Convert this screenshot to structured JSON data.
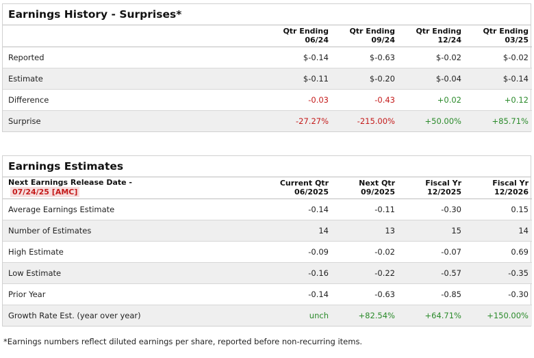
{
  "history": {
    "title": "Earnings History - Surprises*",
    "columns": [
      [
        "Qtr Ending",
        "06/24"
      ],
      [
        "Qtr Ending",
        "09/24"
      ],
      [
        "Qtr Ending",
        "12/24"
      ],
      [
        "Qtr Ending",
        "03/25"
      ]
    ],
    "rows": [
      {
        "label": "Reported",
        "values": [
          "$-0.14",
          "$-0.63",
          "$-0.02",
          "$-0.02"
        ]
      },
      {
        "label": "Estimate",
        "values": [
          "$-0.11",
          "$-0.20",
          "$-0.04",
          "$-0.14"
        ]
      },
      {
        "label": "Difference",
        "values": [
          "-0.03",
          "-0.43",
          "+0.02",
          "+0.12"
        ]
      },
      {
        "label": "Surprise",
        "values": [
          "-27.27%",
          "-215.00%",
          "+50.00%",
          "+85.71%"
        ]
      }
    ]
  },
  "estimates": {
    "title": "Earnings Estimates",
    "release_label": "Next Earnings Release Date -",
    "release_date": "07/24/25 [AMC]",
    "columns": [
      [
        "Current Qtr",
        "06/2025"
      ],
      [
        "Next Qtr",
        "09/2025"
      ],
      [
        "Fiscal Yr",
        "12/2025"
      ],
      [
        "Fiscal Yr",
        "12/2026"
      ]
    ],
    "rows": [
      {
        "label": "Average Earnings Estimate",
        "values": [
          "-0.14",
          "-0.11",
          "-0.30",
          "0.15"
        ]
      },
      {
        "label": "Number of Estimates",
        "values": [
          "14",
          "13",
          "15",
          "14"
        ]
      },
      {
        "label": "High Estimate",
        "values": [
          "-0.09",
          "-0.02",
          "-0.07",
          "0.69"
        ]
      },
      {
        "label": "Low Estimate",
        "values": [
          "-0.16",
          "-0.22",
          "-0.57",
          "-0.35"
        ]
      },
      {
        "label": "Prior Year",
        "values": [
          "-0.14",
          "-0.63",
          "-0.85",
          "-0.30"
        ]
      },
      {
        "label": "Growth Rate Est. (year over year)",
        "values": [
          "unch",
          "+82.54%",
          "+64.71%",
          "+150.00%"
        ]
      }
    ]
  },
  "footnote": "*Earnings numbers reflect diluted earnings per share, reported before non-recurring items.",
  "colors": {
    "negative": "#c41a1a",
    "positive": "#2a8a2a",
    "row_alt": "#efefef",
    "release_bg": "#f7dede"
  }
}
